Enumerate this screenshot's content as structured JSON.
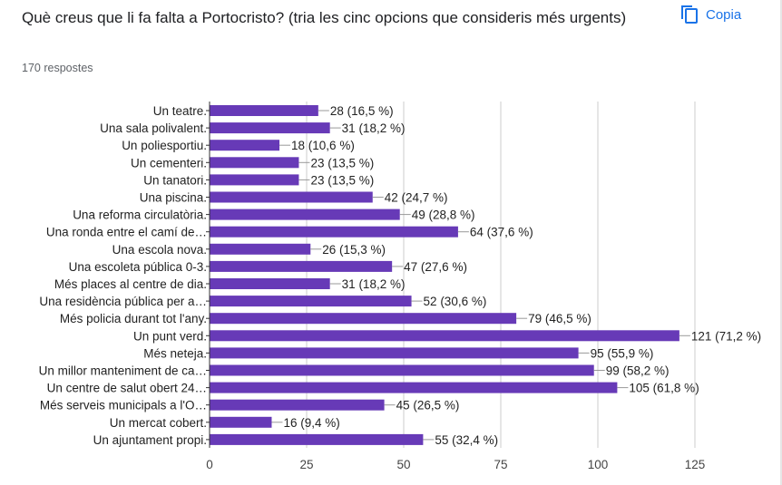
{
  "question": "Què creus que li fa falta a Portocristo? (tria les cinc opcions que consideris més urgents)",
  "response_count": "170 respostes",
  "copy_label": "Copia",
  "icons": {
    "copy": "copy-icon"
  },
  "colors": {
    "bar": "#673ab7",
    "accent": "#1a73e8",
    "grid": "#cccccc"
  },
  "chart_data": {
    "type": "bar",
    "orientation": "horizontal",
    "title": "Què creus que li fa falta a Portocristo? (tria les cinc opcions que consideris més urgents)",
    "xlabel": "",
    "ylabel": "",
    "xlim": [
      0,
      125
    ],
    "ticks": [
      0,
      25,
      50,
      75,
      100,
      125
    ],
    "tick_labels": [
      "0",
      "25",
      "50",
      "75",
      "100",
      "125"
    ],
    "grid": true,
    "categories": [
      "Un teatre.",
      "Una sala polivalent.",
      "Un poliesportiu.",
      "Un cementeri.",
      "Un tanatori.",
      "Una piscina.",
      "Una reforma circulatòria.",
      "Una ronda entre el camí de…",
      "Una escola nova.",
      "Una escoleta pública 0-3.",
      "Més places al centre de dia.",
      "Una residència pública per a…",
      "Més policia durant tot l'any.",
      "Un punt verd.",
      "Més neteja.",
      "Un millor manteniment de ca…",
      "Un centre de salut obert 24…",
      "Més serveis municipals a l'O…",
      "Un mercat cobert.",
      "Un ajuntament propi."
    ],
    "values": [
      28,
      31,
      18,
      23,
      23,
      42,
      49,
      64,
      26,
      47,
      31,
      52,
      79,
      121,
      95,
      99,
      105,
      45,
      16,
      55
    ],
    "value_labels": [
      "28 (16,5 %)",
      "31 (18,2 %)",
      "18 (10,6 %)",
      "23 (13,5 %)",
      "23 (13,5 %)",
      "42 (24,7 %)",
      "49 (28,8 %)",
      "64 (37,6 %)",
      "26 (15,3 %)",
      "47 (27,6 %)",
      "31 (18,2 %)",
      "52 (30,6 %)",
      "79 (46,5 %)",
      "121 (71,2 %)",
      "95 (55,9 %)",
      "99 (58,2 %)",
      "105 (61,8 %)",
      "45 (26,5 %)",
      "16 (9,4 %)",
      "55 (32,4 %)"
    ]
  }
}
